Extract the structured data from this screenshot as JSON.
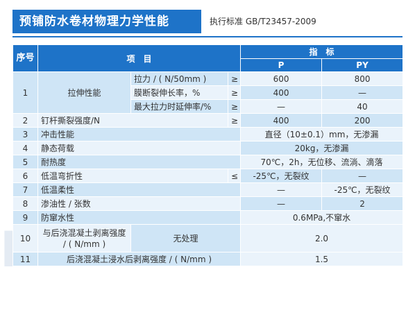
{
  "header": {
    "title": "预铺防水卷材物理力学性能",
    "standard": "执行标准  GB/T23457-2009"
  },
  "watermark": {
    "text": "K"
  },
  "table": {
    "head": {
      "seq": "序号",
      "item": "项　目",
      "indicator": "指　标",
      "p": "P",
      "py": "PY"
    },
    "rows": {
      "r1": {
        "seq": "1",
        "item": "拉伸性能",
        "sub1": {
          "name": "拉力 / ( N/50mm )",
          "op": "≥",
          "p": "600",
          "py": "800"
        },
        "sub2": {
          "name": "膜断裂伸长率，%",
          "op": "≥",
          "p": "400",
          "py": "—"
        },
        "sub3": {
          "name": "最大拉力时延伸率/%",
          "op": "≥",
          "p": "—",
          "py": "40"
        }
      },
      "r2": {
        "seq": "2",
        "item": "钉杆撕裂强度/N",
        "op": "≥",
        "p": "400",
        "py": "200"
      },
      "r3": {
        "seq": "3",
        "item": "冲击性能",
        "value": "直径（10±0.1）mm，无渗漏"
      },
      "r4": {
        "seq": "4",
        "item": "静态荷载",
        "value": "20kg，无渗漏"
      },
      "r5": {
        "seq": "5",
        "item": "耐热度",
        "value": "70℃，2h，无位移、流淌、滴落"
      },
      "r6": {
        "seq": "6",
        "item": "低温弯折性",
        "op": "≤",
        "p": "-25℃，无裂纹",
        "py": "—"
      },
      "r7": {
        "seq": "7",
        "item": "低温柔性",
        "p": "—",
        "py": "-25℃，无裂纹"
      },
      "r8": {
        "seq": "8",
        "item": "渗油性 / 张数",
        "p": "—",
        "py": "2"
      },
      "r9": {
        "seq": "9",
        "item": "防窜水性",
        "value": "0.6MPa,不窜水"
      },
      "r10": {
        "seq": "10",
        "item": "与后浇混凝土剥离强度 / ( N/mm )",
        "sub": "无处理",
        "value": "2.0"
      },
      "r11": {
        "seq": "11",
        "item": "后浇混凝土浸水后剥离强度 / ( N/mm )",
        "value": "1.5"
      }
    }
  }
}
